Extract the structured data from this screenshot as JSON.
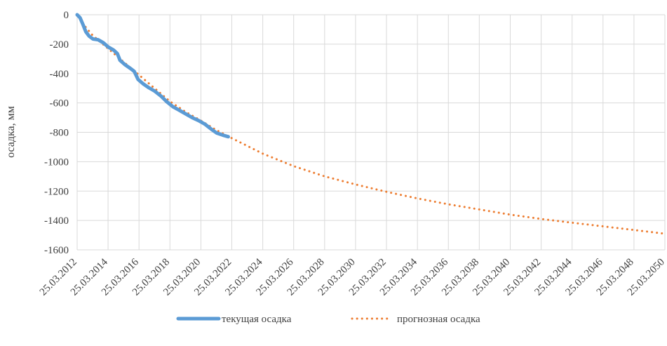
{
  "chart_data": {
    "type": "line",
    "title": "",
    "xlabel": "",
    "ylabel": "осадка, мм",
    "ylim": [
      -1600,
      0
    ],
    "yticks": [
      0,
      -200,
      -400,
      -600,
      -800,
      -1000,
      -1200,
      -1400,
      -1600
    ],
    "xlim": [
      "2012-03-25",
      "2050-03-25"
    ],
    "xticks": [
      "25.03.2012",
      "25.03.2014",
      "25.03.2016",
      "25.03.2018",
      "25.03.2020",
      "25.03.2022",
      "25.03.2024",
      "25.03.2026",
      "25.03.2028",
      "25.03.2030",
      "25.03.2032",
      "25.03.2034",
      "25.03.2036",
      "25.03.2038",
      "25.03.2040",
      "25.03.2042",
      "25.03.2044",
      "25.03.2046",
      "25.03.2048",
      "25.03.2050"
    ],
    "grid": "vertical and horizontal",
    "legend_position": "bottom",
    "series": [
      {
        "name": "текущая осадка",
        "color": "#5B9BD5",
        "style": "solid",
        "points": [
          {
            "x": "2012-03-25",
            "y": 0
          },
          {
            "x": "2012-06-01",
            "y": -20
          },
          {
            "x": "2012-08-15",
            "y": -70
          },
          {
            "x": "2012-10-15",
            "y": -115
          },
          {
            "x": "2013-01-01",
            "y": -145
          },
          {
            "x": "2013-04-01",
            "y": -165
          },
          {
            "x": "2013-08-01",
            "y": -170
          },
          {
            "x": "2013-12-01",
            "y": -190
          },
          {
            "x": "2014-04-01",
            "y": -220
          },
          {
            "x": "2014-08-01",
            "y": -240
          },
          {
            "x": "2014-11-01",
            "y": -265
          },
          {
            "x": "2015-01-01",
            "y": -310
          },
          {
            "x": "2015-05-01",
            "y": -340
          },
          {
            "x": "2015-09-01",
            "y": -365
          },
          {
            "x": "2015-12-01",
            "y": -385
          },
          {
            "x": "2016-03-01",
            "y": -440
          },
          {
            "x": "2016-07-01",
            "y": -470
          },
          {
            "x": "2016-11-01",
            "y": -495
          },
          {
            "x": "2017-04-01",
            "y": -520
          },
          {
            "x": "2017-09-01",
            "y": -555
          },
          {
            "x": "2018-01-01",
            "y": -590
          },
          {
            "x": "2018-06-01",
            "y": -625
          },
          {
            "x": "2018-11-01",
            "y": -650
          },
          {
            "x": "2019-04-01",
            "y": -675
          },
          {
            "x": "2019-09-01",
            "y": -700
          },
          {
            "x": "2020-02-01",
            "y": -720
          },
          {
            "x": "2020-07-01",
            "y": -745
          },
          {
            "x": "2020-12-01",
            "y": -780
          },
          {
            "x": "2021-04-01",
            "y": -805
          },
          {
            "x": "2021-09-01",
            "y": -820
          },
          {
            "x": "2022-01-01",
            "y": -830
          }
        ]
      },
      {
        "name": "прогнозная осадка",
        "color": "#ED7D31",
        "style": "dotted",
        "points": [
          {
            "x": "2012-03-25",
            "y": 0
          },
          {
            "x": "2012-09-01",
            "y": -70
          },
          {
            "x": "2013-03-25",
            "y": -140
          },
          {
            "x": "2014-03-25",
            "y": -230
          },
          {
            "x": "2015-03-25",
            "y": -320
          },
          {
            "x": "2016-03-25",
            "y": -410
          },
          {
            "x": "2017-03-25",
            "y": -500
          },
          {
            "x": "2018-03-25",
            "y": -590
          },
          {
            "x": "2019-03-25",
            "y": -660
          },
          {
            "x": "2020-03-25",
            "y": -720
          },
          {
            "x": "2021-03-25",
            "y": -785
          },
          {
            "x": "2022-03-25",
            "y": -840
          },
          {
            "x": "2024-03-25",
            "y": -945
          },
          {
            "x": "2026-03-25",
            "y": -1030
          },
          {
            "x": "2028-03-25",
            "y": -1100
          },
          {
            "x": "2030-03-25",
            "y": -1155
          },
          {
            "x": "2032-03-25",
            "y": -1205
          },
          {
            "x": "2034-03-25",
            "y": -1250
          },
          {
            "x": "2036-03-25",
            "y": -1290
          },
          {
            "x": "2038-03-25",
            "y": -1325
          },
          {
            "x": "2040-03-25",
            "y": -1360
          },
          {
            "x": "2042-03-25",
            "y": -1390
          },
          {
            "x": "2044-03-25",
            "y": -1415
          },
          {
            "x": "2046-03-25",
            "y": -1440
          },
          {
            "x": "2048-03-25",
            "y": -1465
          },
          {
            "x": "2050-03-25",
            "y": -1490
          }
        ]
      }
    ]
  }
}
